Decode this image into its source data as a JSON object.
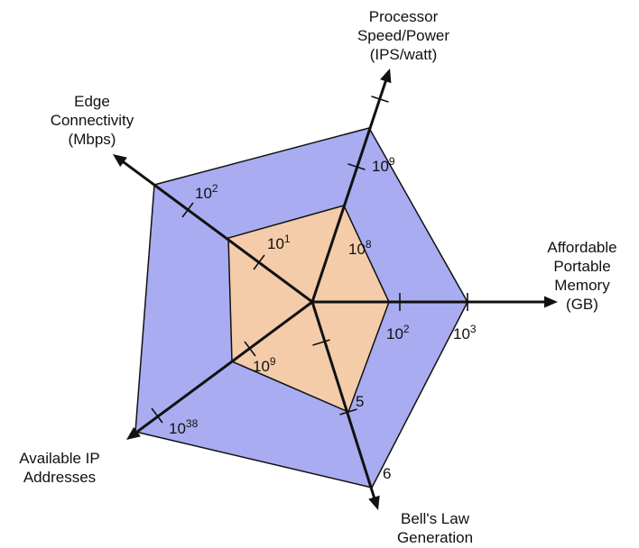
{
  "colors": {
    "outer_fill": "#a9acf0",
    "inner_fill": "#f4ccaa",
    "outline": "#111111",
    "axis": "#111111"
  },
  "axes": [
    {
      "id": "processor",
      "title_lines": [
        "Processor",
        "Speed/Power",
        "(IPS/watt)"
      ],
      "inner": {
        "base": "10",
        "exp": "8"
      },
      "outer": {
        "base": "10",
        "exp": "9"
      }
    },
    {
      "id": "memory",
      "title_lines": [
        "Affordable",
        "Portable",
        "Memory",
        "(GB)"
      ],
      "inner": {
        "base": "10",
        "exp": "2"
      },
      "outer": {
        "base": "10",
        "exp": "3"
      }
    },
    {
      "id": "bells-law",
      "title_lines": [
        "Bell's Law",
        "Generation"
      ],
      "inner": {
        "base": "5",
        "exp": ""
      },
      "outer": {
        "base": "6",
        "exp": ""
      }
    },
    {
      "id": "ip-addresses",
      "title_lines": [
        "Available IP",
        "Addresses"
      ],
      "inner": {
        "base": "10",
        "exp": "9"
      },
      "outer": {
        "base": "10",
        "exp": "38"
      }
    },
    {
      "id": "edge",
      "title_lines": [
        "Edge",
        "Connectivity",
        "(Mbps)"
      ],
      "inner": {
        "base": "10",
        "exp": "1"
      },
      "outer": {
        "base": "10",
        "exp": "2"
      }
    }
  ]
}
